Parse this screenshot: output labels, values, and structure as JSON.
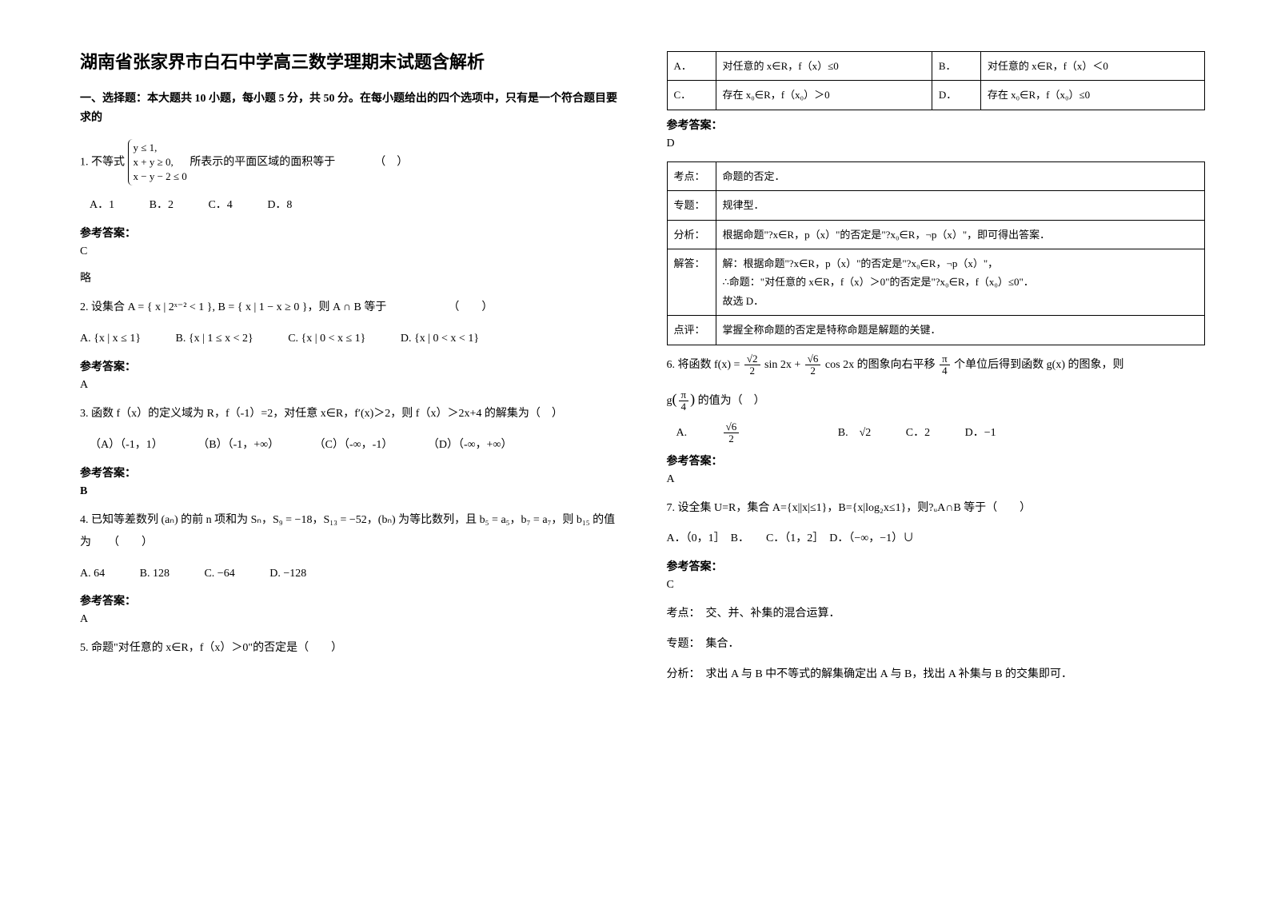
{
  "title": "湖南省张家界市白石中学高三数学理期末试题含解析",
  "section1": "一、选择题：本大题共 10 小题，每小题 5 分，共 50 分。在每小题给出的四个选项中，只有是一个符合题目要求的",
  "q1": {
    "stem_prefix": "1. 不等式",
    "sys1": "y ≤ 1,",
    "sys2": "x + y ≥ 0,",
    "sys3": "x − y − 2 ≤ 0",
    "stem_suffix": " 所表示的平面区域的面积等于　　　　（　）",
    "A": "A．1",
    "B": "B．2",
    "C": "C．4",
    "D": "D．8",
    "ans_label": "参考答案：",
    "ans": "C",
    "note": "略"
  },
  "q2": {
    "stem": "2. 设集合 A = { x | 2ˣ⁻² < 1 }, B = { x | 1 − x ≥ 0 }，则 A ∩ B 等于　　　　　　（　　）",
    "A": "A. {x | x ≤ 1}",
    "B": "B. {x | 1 ≤ x < 2}",
    "C": "C. {x | 0 < x ≤ 1}",
    "D": "D. {x | 0 < x < 1}",
    "ans_label": "参考答案：",
    "ans": "A"
  },
  "q3": {
    "stem": "3. 函数 f（x）的定义域为 R，f（-1）=2，对任意 x∈R，f′(x)＞2，则 f（x）＞2x+4 的解集为（　）",
    "A": "（A）（-1，1）",
    "B": "（B）（-1，+∞）",
    "C": "（C）（-∞，-1）",
    "D": "（D）（-∞，+∞）",
    "ans_label": "参考答案：",
    "ans": "B"
  },
  "q4": {
    "stem": "4. 已知等差数列 (aₙ) 的前 n 项和为 Sₙ，S₉ = −18，S₁₃ = −52，(bₙ) 为等比数列，且 b₅ = a₅，b₇ = a₇，则 b₁₅ 的值为　　（　　）",
    "A": "A. 64",
    "B": "B. 128",
    "C": "C. −64",
    "D": "D. −128",
    "ans_label": "参考答案：",
    "ans": "A"
  },
  "q5": {
    "stem": "5. 命题\"对任意的 x∈R，f（x）＞0\"的否定是（　　）",
    "table": {
      "A": "对任意的 x∈R，f（x）≤0",
      "B": "对任意的 x∈R，f（x）＜0",
      "C": "存在 x₀∈R，f（x₀）＞0",
      "D": "存在 x₀∈R，f（x₀）≤0"
    },
    "ans_label": "参考答案：",
    "ans": "D",
    "explain": {
      "r1a": "考点：",
      "r1b": "命题的否定．",
      "r2a": "专题：",
      "r2b": "规律型．",
      "r3a": "分析：",
      "r3b": "根据命题\"?x∈R，p（x）\"的否定是\"?x₀∈R，¬p（x）\"，即可得出答案．",
      "r4a": "解答：",
      "r4b": "解：根据命题\"?x∈R，p（x）\"的否定是\"?x₀∈R，¬p（x）\"，\n∴命题：\"对任意的 x∈R，f（x）＞0\"的否定是\"?x₀∈R，f（x₀）≤0\"．\n故选 D．",
      "r5a": "点评：",
      "r5b": "掌握全称命题的否定是特称命题是解题的关键．"
    }
  },
  "q6": {
    "stem_a": "6. 将函数 ",
    "fx": "f(x) = ",
    "frac1n": "√2",
    "frac1d": "2",
    "mid1": " sin 2x + ",
    "frac2n": "√6",
    "frac2d": "2",
    "mid2": " cos 2x",
    "stem_b": " 的图象向右平移 ",
    "frac3n": "π",
    "frac3d": "4",
    "stem_c": " 个单位后得到函数 g(x) 的图象，则",
    "line2a": "g",
    "frac4n": "π",
    "frac4d": "4",
    "line2b": " 的值为（　）",
    "optA_pre": "A. ",
    "optA_n": "√6",
    "optA_d": "2",
    "optB": "B.　√2",
    "optC": "C．2",
    "optD": "D．−1",
    "ans_label": "参考答案：",
    "ans": "A"
  },
  "q7": {
    "stem": "7. 设全集 U=R，集合 A={x||x|≤1}，B={x|log₂x≤1}，则?ᵤA∩B 等于（　　）",
    "opts": "A．（0，1］　B．　　C．（1，2］　D．（−∞，−1）∪",
    "ans_label": "参考答案：",
    "ans": "C",
    "l1": "考点：　交、并、补集的混合运算．",
    "l2": "专题：　集合．",
    "l3": "分析：　求出 A 与 B 中不等式的解集确定出 A 与 B，找出 A 补集与 B 的交集即可．"
  }
}
